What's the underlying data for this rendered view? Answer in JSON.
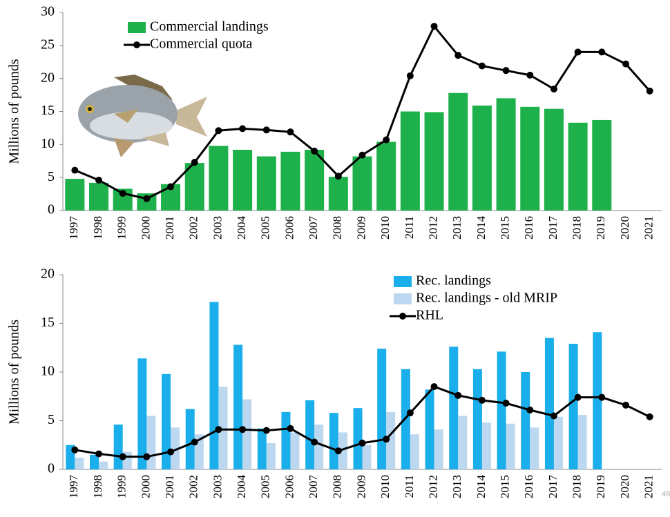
{
  "chart_data": [
    {
      "type": "bar",
      "y_label": "Millions of pounds",
      "categories": [
        "1997",
        "1998",
        "1999",
        "2000",
        "2001",
        "2002",
        "2003",
        "2004",
        "2005",
        "2006",
        "2007",
        "2008",
        "2009",
        "2010",
        "2011",
        "2012",
        "2013",
        "2014",
        "2015",
        "2016",
        "2017",
        "2018",
        "2019",
        "2020",
        "2021"
      ],
      "series": [
        {
          "name": "Commercial landings",
          "color": "#1db04b",
          "kind": "bar",
          "values": [
            4.8,
            4.2,
            3.3,
            2.6,
            4.0,
            7.2,
            9.8,
            9.2,
            8.2,
            8.9,
            9.2,
            5.1,
            8.2,
            10.4,
            15.0,
            14.9,
            17.8,
            15.9,
            17.0,
            15.7,
            15.4,
            13.3,
            13.7,
            null,
            null
          ]
        },
        {
          "name": "Commercial quota",
          "color": "#000000",
          "kind": "line",
          "values": [
            6.1,
            4.6,
            2.6,
            1.8,
            3.6,
            7.3,
            12.1,
            12.4,
            12.2,
            11.9,
            9.0,
            5.2,
            8.4,
            10.7,
            20.4,
            27.9,
            23.5,
            21.9,
            21.2,
            20.5,
            18.4,
            24.0,
            24.0,
            22.2,
            18.1
          ]
        }
      ],
      "ylim": [
        0,
        30
      ],
      "yticks": [
        0,
        5,
        10,
        15,
        20,
        25,
        30
      ]
    },
    {
      "type": "bar",
      "y_label": "Millions of pounds",
      "categories": [
        "1997",
        "1998",
        "1999",
        "2000",
        "2001",
        "2002",
        "2003",
        "2004",
        "2005",
        "2006",
        "2007",
        "2008",
        "2009",
        "2010",
        "2011",
        "2012",
        "2013",
        "2014",
        "2015",
        "2016",
        "2017",
        "2018",
        "2019",
        "2020",
        "2021"
      ],
      "series": [
        {
          "name": "Rec. landings",
          "color": "#1aaeea",
          "kind": "bar",
          "values": [
            2.5,
            1.5,
            4.6,
            11.4,
            9.8,
            6.2,
            17.2,
            12.8,
            4.2,
            5.9,
            7.1,
            5.8,
            6.3,
            12.4,
            10.3,
            8.2,
            12.6,
            10.3,
            12.1,
            10.0,
            13.5,
            12.9,
            14.1,
            null,
            null
          ]
        },
        {
          "name": "Rec. landings - old MRIP",
          "color": "#bcd8f0",
          "kind": "bar",
          "values": [
            1.2,
            0.8,
            1.8,
            5.5,
            4.3,
            3.6,
            8.5,
            7.2,
            2.7,
            3.8,
            4.6,
            3.8,
            2.5,
            5.9,
            3.6,
            4.1,
            5.5,
            4.8,
            4.7,
            4.3,
            5.4,
            5.6,
            null,
            null,
            null
          ]
        },
        {
          "name": "RHL",
          "color": "#000000",
          "kind": "line",
          "values": [
            2.0,
            1.6,
            1.3,
            1.3,
            1.8,
            2.8,
            4.1,
            4.1,
            4.0,
            4.2,
            2.8,
            1.9,
            2.7,
            3.1,
            5.8,
            8.5,
            7.6,
            7.1,
            6.8,
            6.1,
            5.5,
            7.4,
            7.4,
            6.6,
            5.4
          ]
        }
      ],
      "ylim": [
        0,
        20
      ],
      "yticks": [
        0,
        5,
        10,
        15,
        20
      ]
    }
  ],
  "page_number": "48"
}
